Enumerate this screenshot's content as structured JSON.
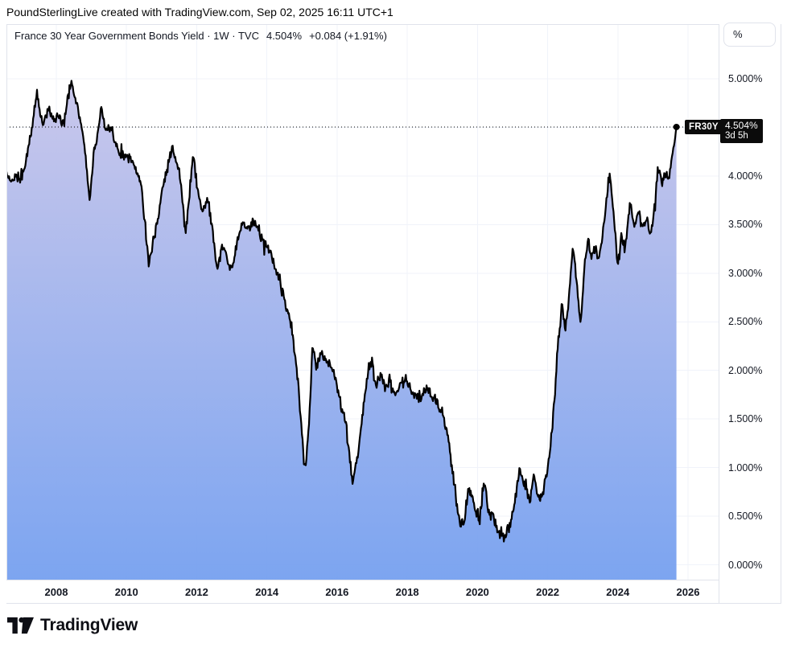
{
  "attribution": "PoundSterlingLive created with TradingView.com, Sep 02, 2025 16:11 UTC+1",
  "legend": {
    "symbol_line": "France 30 Year Government Bonds Yield · 1W · TVC",
    "last_value": "4.504%",
    "change": "+0.084 (+1.91%)"
  },
  "price_scale": {
    "unit_button": "%",
    "labels": [
      "5.000%",
      "4.000%",
      "3.500%",
      "3.000%",
      "2.500%",
      "2.000%",
      "1.500%",
      "1.000%",
      "0.500%",
      "0.000%"
    ]
  },
  "time_scale": {
    "labels": [
      "2008",
      "2010",
      "2012",
      "2014",
      "2016",
      "2018",
      "2020",
      "2022",
      "2024",
      "2026"
    ]
  },
  "price_label": {
    "symbol": "FR30Y",
    "value": "4.504%",
    "countdown": "3d 5h"
  },
  "footer": {
    "brand": "TradingView"
  },
  "colors": {
    "line": "#000000",
    "fill_top": "#c9c6ea",
    "fill_bottom": "#77a1f0",
    "grid": "#f0f3fa",
    "border": "#e0e3eb",
    "text": "#131722",
    "label_bg": "#0b0b0b"
  },
  "chart_data": {
    "type": "area",
    "title": "France 30 Year Government Bonds Yield",
    "interval": "1W",
    "exchange": "TVC",
    "unit": "%",
    "last_value": 4.504,
    "change_abs": 0.084,
    "change_pct": 1.91,
    "last_point_date": "Sep 02, 2025",
    "x_axis_years": [
      2008,
      2010,
      2012,
      2014,
      2016,
      2018,
      2020,
      2022,
      2024,
      2026
    ],
    "y_ticks_pct": [
      0.0,
      0.5,
      1.0,
      1.5,
      2.0,
      2.5,
      3.0,
      3.5,
      4.0,
      4.5,
      5.0
    ],
    "ylim": [
      0,
      5.25
    ],
    "grid": true,
    "legend_position": "top-left",
    "anchors": [
      [
        2006.58,
        4.03
      ],
      [
        2006.7,
        3.93
      ],
      [
        2006.85,
        4.0
      ],
      [
        2007.0,
        3.97
      ],
      [
        2007.1,
        4.12
      ],
      [
        2007.2,
        4.3
      ],
      [
        2007.33,
        4.55
      ],
      [
        2007.45,
        4.87
      ],
      [
        2007.55,
        4.62
      ],
      [
        2007.65,
        4.55
      ],
      [
        2007.78,
        4.7
      ],
      [
        2007.9,
        4.58
      ],
      [
        2008.05,
        4.6
      ],
      [
        2008.2,
        4.52
      ],
      [
        2008.3,
        4.72
      ],
      [
        2008.42,
        4.99
      ],
      [
        2008.52,
        4.82
      ],
      [
        2008.62,
        4.7
      ],
      [
        2008.75,
        4.45
      ],
      [
        2008.85,
        4.15
      ],
      [
        2008.95,
        3.73
      ],
      [
        2009.05,
        4.18
      ],
      [
        2009.17,
        4.42
      ],
      [
        2009.28,
        4.73
      ],
      [
        2009.4,
        4.48
      ],
      [
        2009.55,
        4.52
      ],
      [
        2009.68,
        4.35
      ],
      [
        2009.8,
        4.22
      ],
      [
        2009.95,
        4.23
      ],
      [
        2010.1,
        4.18
      ],
      [
        2010.25,
        4.08
      ],
      [
        2010.4,
        3.95
      ],
      [
        2010.52,
        3.55
      ],
      [
        2010.64,
        3.07
      ],
      [
        2010.75,
        3.32
      ],
      [
        2010.88,
        3.52
      ],
      [
        2011.0,
        3.82
      ],
      [
        2011.12,
        4.02
      ],
      [
        2011.3,
        4.3
      ],
      [
        2011.42,
        4.18
      ],
      [
        2011.55,
        3.92
      ],
      [
        2011.68,
        3.38
      ],
      [
        2011.8,
        3.85
      ],
      [
        2011.9,
        4.23
      ],
      [
        2012.0,
        3.92
      ],
      [
        2012.15,
        3.63
      ],
      [
        2012.3,
        3.8
      ],
      [
        2012.45,
        3.42
      ],
      [
        2012.6,
        3.04
      ],
      [
        2012.72,
        3.28
      ],
      [
        2012.85,
        3.18
      ],
      [
        2013.0,
        3.02
      ],
      [
        2013.15,
        3.32
      ],
      [
        2013.3,
        3.5
      ],
      [
        2013.45,
        3.42
      ],
      [
        2013.6,
        3.54
      ],
      [
        2013.74,
        3.47
      ],
      [
        2013.9,
        3.32
      ],
      [
        2014.1,
        3.2
      ],
      [
        2014.3,
        3.0
      ],
      [
        2014.5,
        2.72
      ],
      [
        2014.7,
        2.45
      ],
      [
        2014.9,
        1.85
      ],
      [
        2015.05,
        1.08
      ],
      [
        2015.1,
        1.0
      ],
      [
        2015.2,
        1.45
      ],
      [
        2015.3,
        2.25
      ],
      [
        2015.4,
        2.03
      ],
      [
        2015.52,
        2.18
      ],
      [
        2015.65,
        2.12
      ],
      [
        2015.8,
        2.05
      ],
      [
        2015.95,
        1.95
      ],
      [
        2016.1,
        1.65
      ],
      [
        2016.25,
        1.45
      ],
      [
        2016.44,
        0.83
      ],
      [
        2016.6,
        1.15
      ],
      [
        2016.75,
        1.62
      ],
      [
        2016.9,
        2.02
      ],
      [
        2017.0,
        2.1
      ],
      [
        2017.12,
        1.84
      ],
      [
        2017.25,
        1.96
      ],
      [
        2017.38,
        1.8
      ],
      [
        2017.5,
        1.92
      ],
      [
        2017.65,
        1.77
      ],
      [
        2017.8,
        1.85
      ],
      [
        2017.95,
        1.93
      ],
      [
        2018.1,
        1.8
      ],
      [
        2018.25,
        1.74
      ],
      [
        2018.4,
        1.73
      ],
      [
        2018.55,
        1.82
      ],
      [
        2018.7,
        1.74
      ],
      [
        2018.85,
        1.68
      ],
      [
        2019.0,
        1.55
      ],
      [
        2019.15,
        1.35
      ],
      [
        2019.3,
        0.95
      ],
      [
        2019.45,
        0.5
      ],
      [
        2019.6,
        0.4
      ],
      [
        2019.75,
        0.8
      ],
      [
        2019.85,
        0.72
      ],
      [
        2019.95,
        0.55
      ],
      [
        2020.05,
        0.4
      ],
      [
        2020.15,
        0.75
      ],
      [
        2020.22,
        0.86
      ],
      [
        2020.3,
        0.55
      ],
      [
        2020.45,
        0.48
      ],
      [
        2020.6,
        0.33
      ],
      [
        2020.75,
        0.29
      ],
      [
        2020.9,
        0.38
      ],
      [
        2021.05,
        0.6
      ],
      [
        2021.2,
        0.99
      ],
      [
        2021.35,
        0.82
      ],
      [
        2021.5,
        0.68
      ],
      [
        2021.6,
        0.93
      ],
      [
        2021.75,
        0.67
      ],
      [
        2021.88,
        0.78
      ],
      [
        2022.0,
        0.98
      ],
      [
        2022.1,
        1.3
      ],
      [
        2022.2,
        1.75
      ],
      [
        2022.3,
        2.3
      ],
      [
        2022.4,
        2.68
      ],
      [
        2022.5,
        2.42
      ],
      [
        2022.6,
        2.72
      ],
      [
        2022.72,
        3.26
      ],
      [
        2022.82,
        2.95
      ],
      [
        2022.93,
        2.46
      ],
      [
        2023.05,
        3.05
      ],
      [
        2023.15,
        3.37
      ],
      [
        2023.25,
        3.16
      ],
      [
        2023.35,
        3.3
      ],
      [
        2023.45,
        3.13
      ],
      [
        2023.55,
        3.32
      ],
      [
        2023.65,
        3.68
      ],
      [
        2023.77,
        4.04
      ],
      [
        2023.87,
        3.65
      ],
      [
        2024.0,
        3.06
      ],
      [
        2024.1,
        3.4
      ],
      [
        2024.2,
        3.24
      ],
      [
        2024.35,
        3.72
      ],
      [
        2024.48,
        3.5
      ],
      [
        2024.6,
        3.64
      ],
      [
        2024.72,
        3.45
      ],
      [
        2024.82,
        3.58
      ],
      [
        2024.93,
        3.38
      ],
      [
        2025.05,
        3.7
      ],
      [
        2025.15,
        4.1
      ],
      [
        2025.27,
        3.93
      ],
      [
        2025.35,
        4.02
      ],
      [
        2025.45,
        3.97
      ],
      [
        2025.55,
        4.22
      ],
      [
        2025.62,
        4.35
      ],
      [
        2025.67,
        4.504
      ]
    ]
  }
}
